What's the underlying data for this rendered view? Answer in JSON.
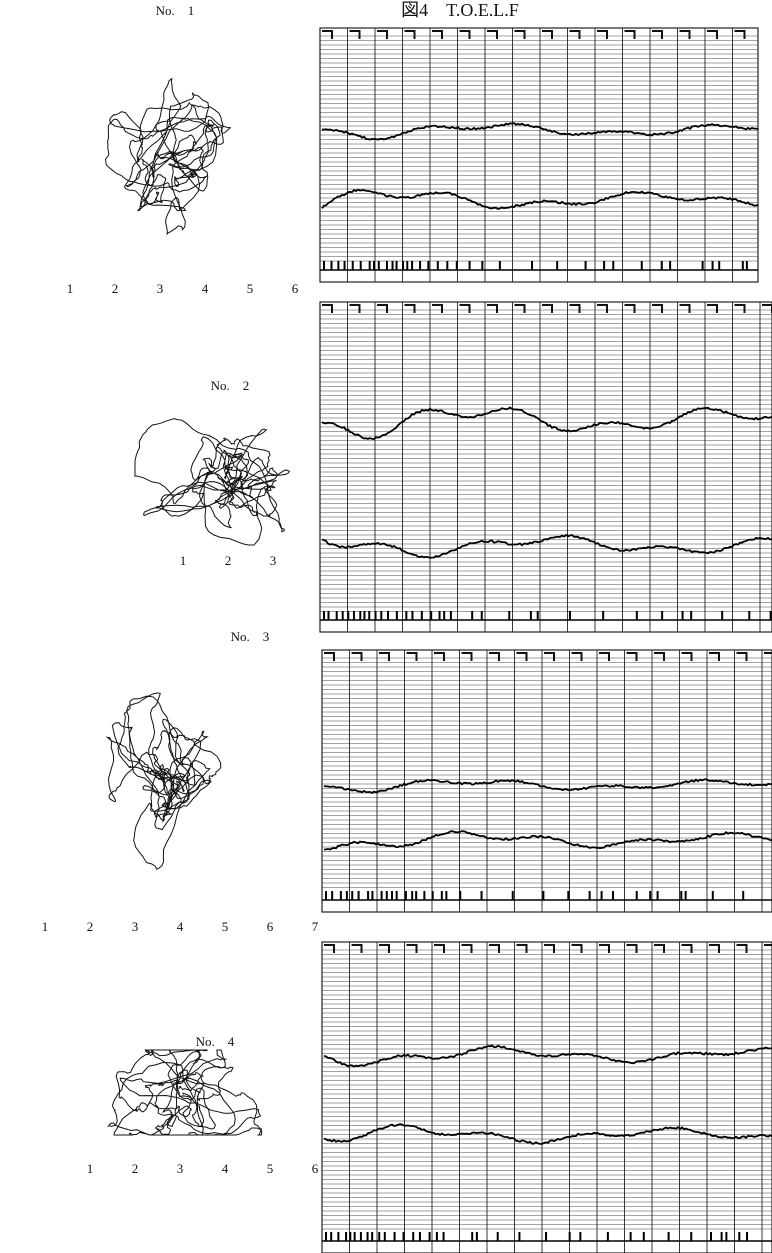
{
  "title": "図4　T.O.E.L.F",
  "panels": [
    {
      "label": "No.　1",
      "scale": [
        1,
        2,
        3,
        4,
        5,
        6
      ]
    },
    {
      "label": "No.　2",
      "scale": [
        1,
        2,
        3
      ]
    },
    {
      "label": "No.　3",
      "scale": [
        1,
        2,
        3,
        4,
        5,
        6,
        7
      ]
    },
    {
      "label": "No.　4",
      "scale": [
        1,
        2,
        3,
        4,
        5,
        6
      ]
    }
  ]
}
